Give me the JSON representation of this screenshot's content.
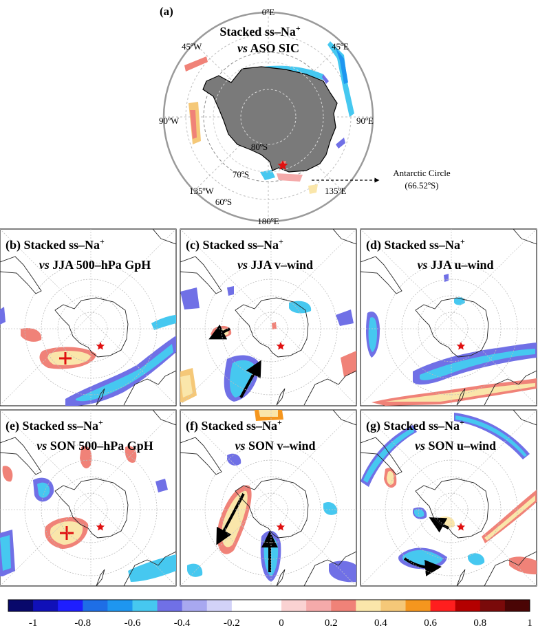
{
  "panel_a": {
    "letter": "(a)",
    "title_line1": "Stacked ss–Na",
    "title_sup": "+",
    "title_line2_vs": "vs",
    "title_line2_rest": " ASO SIC",
    "lon_0": "0ºE",
    "lon_45w": "45ºW",
    "lon_45e": "45ºE",
    "lon_90w": "90ºW",
    "lon_90e": "90ºE",
    "lon_135w": "135ºW",
    "lon_135e": "135ºE",
    "lon_180": "180ºE",
    "lat_80": "80ºS",
    "lat_70": "70ºS",
    "lat_60": "60ºS",
    "circle_label1": "Antarctic Circle",
    "circle_label2": "(66.52ºS)"
  },
  "panels": [
    {
      "letter": "(b)",
      "line1": "Stacked ss–Na",
      "sup": "+",
      "vs": "vs",
      "line2": " JJA 500–hPa GpH"
    },
    {
      "letter": "(c)",
      "line1": "Stacked ss–Na",
      "sup": "+",
      "vs": "vs",
      "line2": " JJA v–wind"
    },
    {
      "letter": "(d)",
      "line1": "Stacked ss–Na",
      "sup": "+",
      "vs": "vs",
      "line2": " JJA u–wind"
    },
    {
      "letter": "(e)",
      "line1": "Stacked ss–Na",
      "sup": "+",
      "vs": "vs",
      "line2": " SON 500–hPa GpH"
    },
    {
      "letter": "(f)",
      "line1": "Stacked ss–Na",
      "sup": "+",
      "vs": "vs",
      "line2": " SON v–wind"
    },
    {
      "letter": "(g)",
      "line1": "Stacked ss–Na",
      "sup": "+",
      "vs": "vs",
      "line2": " SON u–wind"
    }
  ],
  "colorbar": {
    "colors": [
      "#08086b",
      "#1010b8",
      "#1e1eff",
      "#1e6ee6",
      "#1e96f0",
      "#46c8f0",
      "#7070e6",
      "#a8a8f0",
      "#d2d2f8",
      "#ffffff",
      "#ffffff",
      "#fad2d2",
      "#f5aaaa",
      "#f08278",
      "#fae6aa",
      "#f5c878",
      "#f5961e",
      "#ff1e1e",
      "#b40000",
      "#7a0a0a",
      "#4a0505"
    ],
    "ticks": [
      "-1",
      "-0.8",
      "-0.6",
      "-0.4",
      "-0.2",
      "0",
      "0.2",
      "0.4",
      "0.6",
      "0.8",
      "1"
    ]
  }
}
